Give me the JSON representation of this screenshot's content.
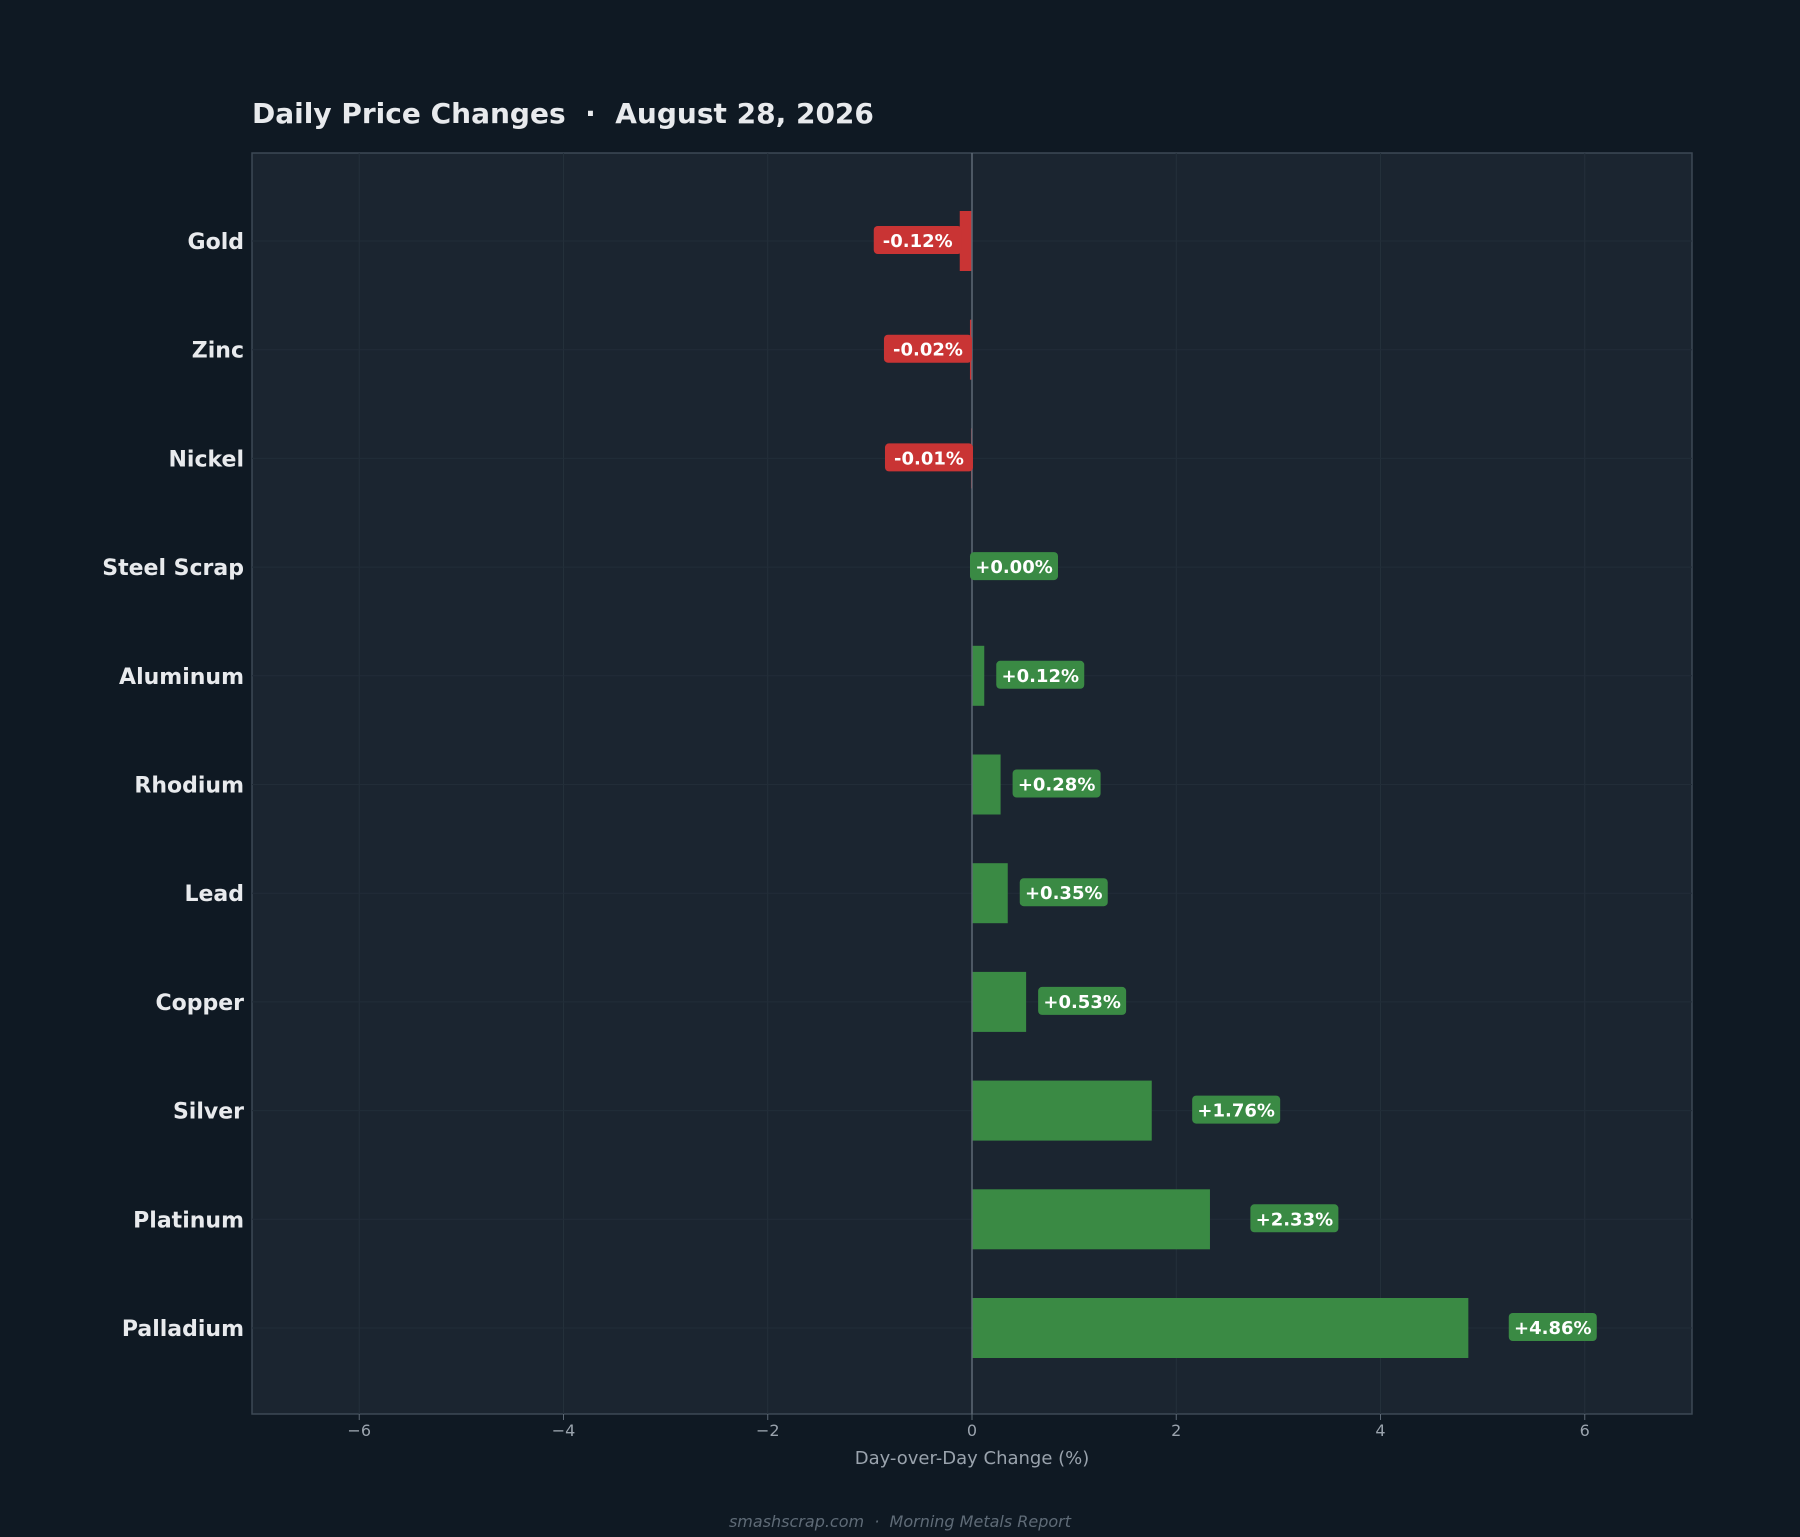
{
  "chart_data": {
    "type": "bar",
    "orientation": "horizontal",
    "title": "Daily Price Changes  ·  August 28, 2026",
    "xlabel": "Day-over-Day Change (%)",
    "ylabel": "",
    "categories": [
      "Gold",
      "Zinc",
      "Nickel",
      "Steel Scrap",
      "Aluminum",
      "Rhodium",
      "Lead",
      "Copper",
      "Silver",
      "Platinum",
      "Palladium"
    ],
    "values": [
      -0.12,
      -0.02,
      -0.01,
      0.0,
      0.12,
      0.28,
      0.35,
      0.53,
      1.76,
      2.33,
      4.86
    ],
    "data_labels": [
      "-0.12%",
      "-0.02%",
      "-0.01%",
      "+0.00%",
      "+0.12%",
      "+0.28%",
      "+0.35%",
      "+0.53%",
      "+1.76%",
      "+2.33%",
      "+4.86%"
    ],
    "xlim": [
      -7.05,
      7.05
    ],
    "xticks": [
      -6,
      -4,
      -2,
      0,
      2,
      4,
      6
    ],
    "xtick_labels": [
      "−6",
      "−4",
      "−2",
      "0",
      "2",
      "4",
      "6"
    ],
    "grid": false,
    "legend": "none"
  },
  "footer": "smashscrap.com  ·  Morning Metals Report",
  "colors": {
    "background": "#0f1923",
    "plot_background": "#1b2530",
    "positive": "#3a8a44",
    "negative": "#c93434",
    "axis_frame": "#3d4955",
    "zero_line": "#5e6a76",
    "text": "#e8eaed",
    "muted_text": "#9aa3ad"
  }
}
